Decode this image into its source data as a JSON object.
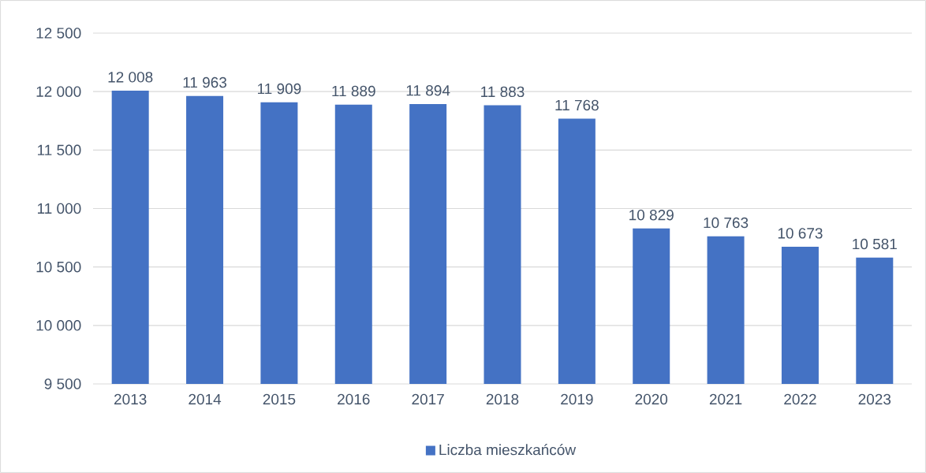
{
  "chart_data": {
    "type": "bar",
    "categories": [
      "2013",
      "2014",
      "2015",
      "2016",
      "2017",
      "2018",
      "2019",
      "2020",
      "2021",
      "2022",
      "2023"
    ],
    "series": [
      {
        "name": "Liczba mieszkańców",
        "color": "#4472c4",
        "values": [
          12008,
          11963,
          11909,
          11889,
          11894,
          11883,
          11768,
          10829,
          10763,
          10673,
          10581
        ],
        "value_labels": [
          "12 008",
          "11 963",
          "11 909",
          "11 889",
          "11 894",
          "11 883",
          "11 768",
          "10 829",
          "10 763",
          "10 673",
          "10 581"
        ]
      }
    ],
    "ylim": [
      9500,
      12500
    ],
    "yticks": [
      {
        "value": 9500,
        "label": "9 500"
      },
      {
        "value": 10000,
        "label": "10 000"
      },
      {
        "value": 10500,
        "label": "10 500"
      },
      {
        "value": 11000,
        "label": "11 000"
      },
      {
        "value": 11500,
        "label": "11 500"
      },
      {
        "value": 12000,
        "label": "12 000"
      },
      {
        "value": 12500,
        "label": "12 500"
      }
    ],
    "grid": "y",
    "legend": "bottom"
  }
}
